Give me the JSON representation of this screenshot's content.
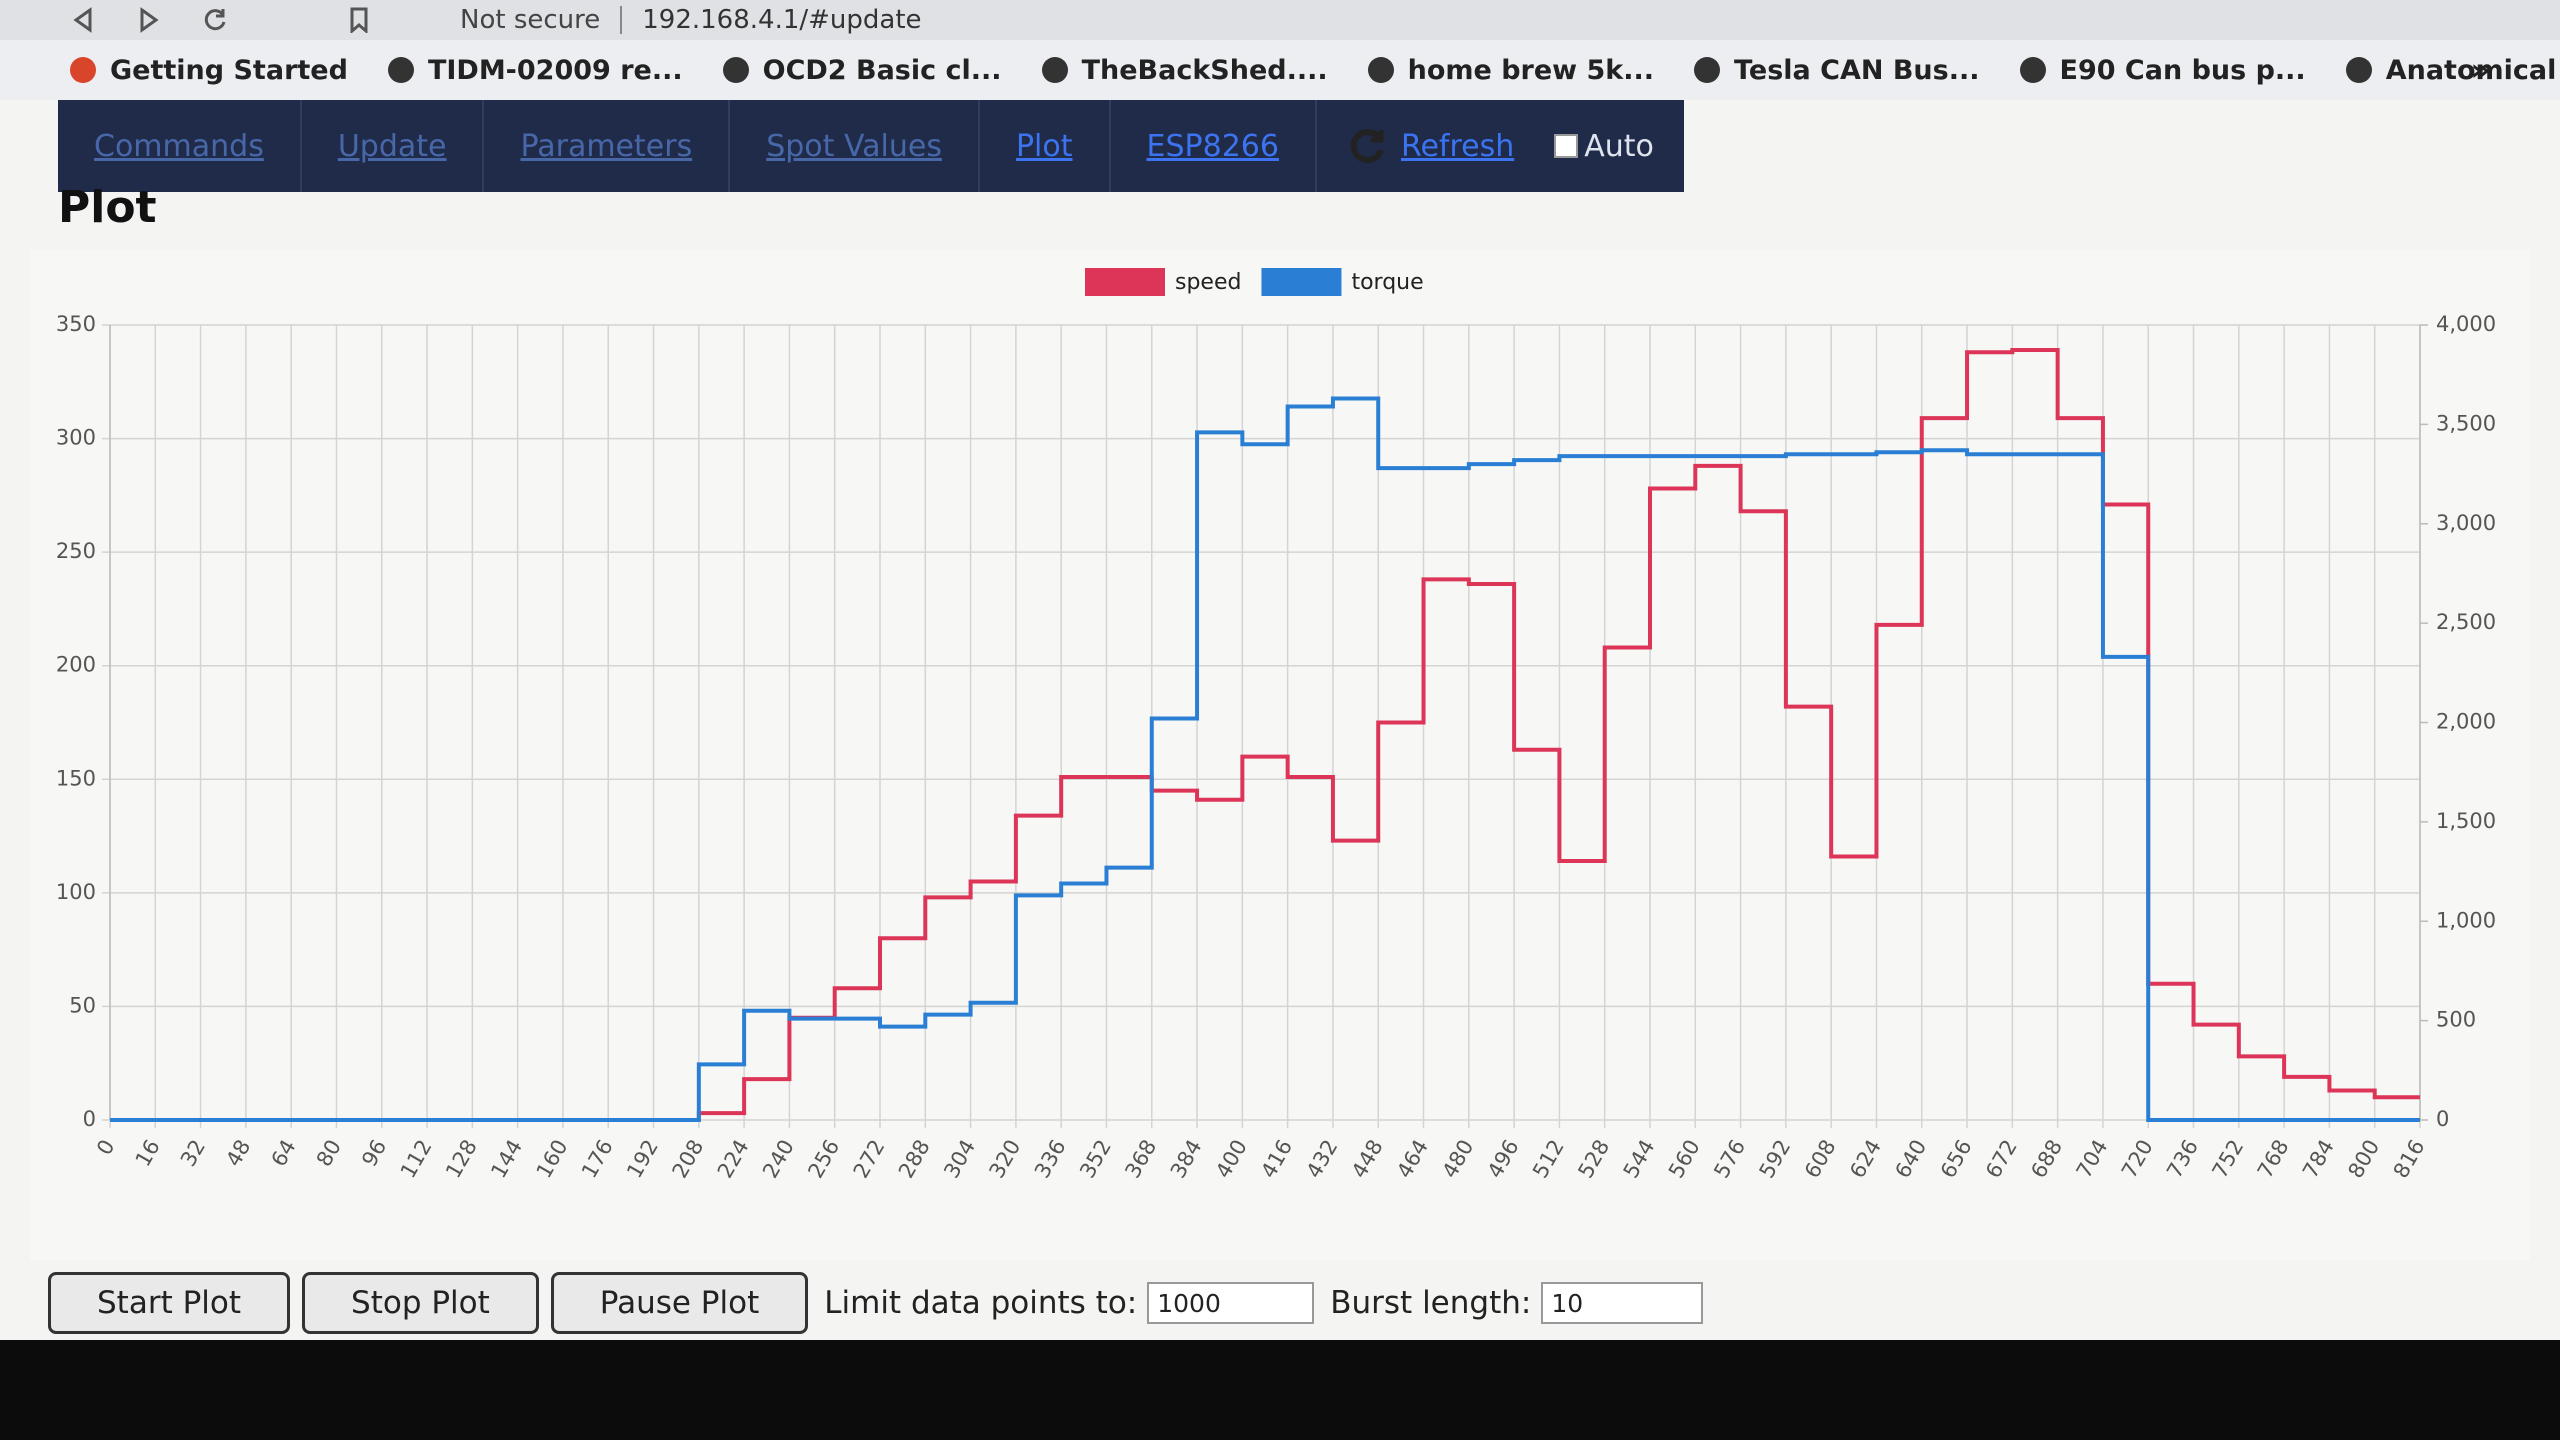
{
  "address_bar": {
    "security": "Not secure",
    "url": "192.168.4.1/#update"
  },
  "bookmarks": [
    "Getting Started",
    "TIDM-02009 re...",
    "OCD2 Basic cl...",
    "TheBackShed....",
    "home brew 5k...",
    "Tesla CAN Bus...",
    "E90 Can bus p...",
    "Anatomical D..."
  ],
  "bookmarks_overflow": "»",
  "nav": {
    "tabs": [
      "Commands",
      "Update",
      "Parameters",
      "Spot Values",
      "Plot",
      "ESP8266"
    ],
    "active": [
      "Plot",
      "ESP8266"
    ],
    "refresh": "Refresh",
    "auto": "Auto"
  },
  "heading": "Plot",
  "chart_data": {
    "type": "line",
    "stepped": true,
    "grid": true,
    "legend": "top",
    "x": [
      0,
      16,
      32,
      48,
      64,
      80,
      96,
      112,
      128,
      144,
      160,
      176,
      192,
      208,
      224,
      240,
      256,
      272,
      288,
      304,
      320,
      336,
      352,
      368,
      384,
      400,
      416,
      432,
      448,
      464,
      480,
      496,
      512,
      528,
      544,
      560,
      576,
      592,
      608,
      624,
      640,
      656,
      672,
      688,
      704,
      720,
      736,
      752,
      768,
      784,
      800,
      816
    ],
    "xlim": [
      0,
      816
    ],
    "xticks": [
      0,
      16,
      32,
      48,
      64,
      80,
      96,
      112,
      128,
      144,
      160,
      176,
      192,
      208,
      224,
      240,
      256,
      272,
      288,
      304,
      320,
      336,
      352,
      368,
      384,
      400,
      416,
      432,
      448,
      464,
      480,
      496,
      512,
      528,
      544,
      560,
      576,
      592,
      608,
      624,
      640,
      656,
      672,
      688,
      704,
      720,
      736,
      752,
      768,
      784,
      800,
      816
    ],
    "ylim": [
      0,
      350
    ],
    "yticks": [
      0,
      50,
      100,
      150,
      200,
      250,
      300,
      350
    ],
    "y2lim": [
      0,
      4000
    ],
    "y2ticks": [
      0,
      500,
      {
        "value": 1000,
        "label": "1,000"
      },
      {
        "value": 1500,
        "label": "1,500"
      },
      {
        "value": 2000,
        "label": "2,000"
      },
      {
        "value": 2500,
        "label": "2,500"
      },
      {
        "value": 3000,
        "label": "3,000"
      },
      {
        "value": 3500,
        "label": "3,500"
      },
      {
        "value": 4000,
        "label": "4,000"
      }
    ],
    "series": [
      {
        "name": "speed",
        "color": "#dc3558",
        "values": [
          0,
          0,
          0,
          0,
          0,
          0,
          0,
          0,
          0,
          0,
          0,
          0,
          0,
          3,
          18,
          45,
          58,
          80,
          98,
          105,
          134,
          151,
          151,
          145,
          141,
          160,
          151,
          123,
          175,
          238,
          236,
          163,
          114,
          208,
          278,
          288,
          268,
          182,
          116,
          218,
          309,
          338,
          339,
          309,
          271,
          60,
          42,
          28,
          19,
          13,
          10,
          10
        ]
      },
      {
        "name": "torque",
        "color": "#2a7fd4",
        "axis": "y2",
        "values": [
          0,
          0,
          0,
          0,
          0,
          0,
          0,
          0,
          0,
          0,
          0,
          0,
          0,
          280,
          550,
          510,
          510,
          470,
          530,
          590,
          1130,
          1190,
          1270,
          2020,
          3460,
          3400,
          3590,
          3630,
          3280,
          3280,
          3300,
          3320,
          3340,
          3340,
          3340,
          3340,
          3340,
          3350,
          3350,
          3360,
          3370,
          3350,
          3350,
          3350,
          2330,
          0,
          0,
          0,
          0,
          0,
          0,
          0
        ]
      }
    ]
  },
  "controls": {
    "buttons": [
      "Start Plot",
      "Stop Plot",
      "Pause Plot"
    ],
    "limit_label": "Limit data points to:",
    "limit_value": "1000",
    "burst_label": "Burst length:",
    "burst_value": "10"
  }
}
